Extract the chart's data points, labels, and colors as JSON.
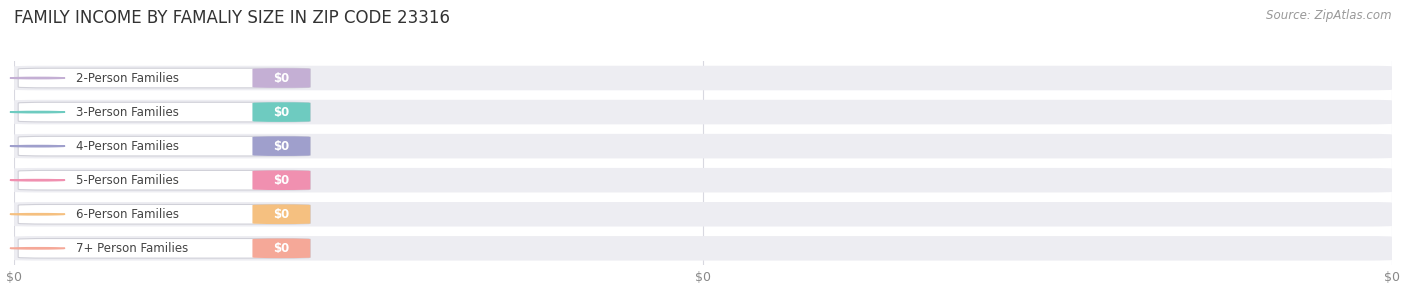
{
  "title": "FAMILY INCOME BY FAMALIY SIZE IN ZIP CODE 23316",
  "source_text": "Source: ZipAtlas.com",
  "categories": [
    "2-Person Families",
    "3-Person Families",
    "4-Person Families",
    "5-Person Families",
    "6-Person Families",
    "7+ Person Families"
  ],
  "values": [
    0,
    0,
    0,
    0,
    0,
    0
  ],
  "bar_colors": [
    "#c4afd4",
    "#6ecbc0",
    "#9f9fcc",
    "#f090b0",
    "#f5c080",
    "#f5a898"
  ],
  "value_labels": [
    "$0",
    "$0",
    "$0",
    "$0",
    "$0",
    "$0"
  ],
  "background_color": "#ffffff",
  "bar_bg_color": "#ededf2",
  "title_fontsize": 12,
  "source_fontsize": 8.5
}
